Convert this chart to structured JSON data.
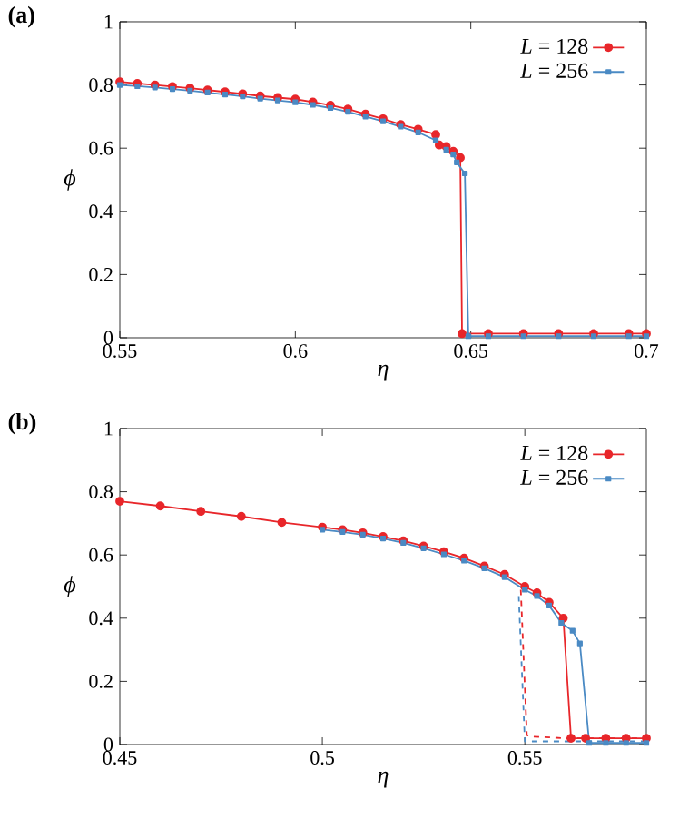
{
  "chart_data": [
    {
      "type": "line",
      "title": "(a)",
      "xlabel": "η",
      "ylabel": "ϕ",
      "xlim": [
        0.55,
        0.7
      ],
      "ylim": [
        0,
        1
      ],
      "xticks": [
        0.55,
        0.6,
        0.65,
        0.7
      ],
      "yticks": [
        0,
        0.2,
        0.4,
        0.6,
        0.8,
        1
      ],
      "legend": "top right",
      "series": [
        {
          "name": "*L* = 128",
          "color": "#e8262a",
          "marker": "circle",
          "line_style": "solid",
          "x": [
            0.55,
            0.555,
            0.56,
            0.565,
            0.57,
            0.575,
            0.58,
            0.585,
            0.59,
            0.595,
            0.6,
            0.605,
            0.61,
            0.615,
            0.62,
            0.625,
            0.63,
            0.635,
            0.64,
            0.641,
            0.643,
            0.645,
            0.647,
            0.6475,
            0.655,
            0.665,
            0.675,
            0.685,
            0.695,
            0.7
          ],
          "values": [
            0.81,
            0.805,
            0.8,
            0.795,
            0.79,
            0.784,
            0.778,
            0.772,
            0.765,
            0.76,
            0.755,
            0.746,
            0.736,
            0.724,
            0.708,
            0.693,
            0.675,
            0.66,
            0.643,
            0.61,
            0.605,
            0.59,
            0.57,
            0.013,
            0.013,
            0.013,
            0.013,
            0.013,
            0.013,
            0.013
          ]
        },
        {
          "name": "*L* = 256",
          "color": "#4a8ac4",
          "marker": "square",
          "line_style": "solid",
          "x": [
            0.55,
            0.555,
            0.56,
            0.565,
            0.57,
            0.575,
            0.58,
            0.585,
            0.59,
            0.595,
            0.6,
            0.605,
            0.61,
            0.615,
            0.62,
            0.625,
            0.63,
            0.635,
            0.64,
            0.643,
            0.645,
            0.646,
            0.6483,
            0.6493,
            0.655,
            0.665,
            0.675,
            0.685,
            0.695,
            0.7
          ],
          "values": [
            0.8,
            0.796,
            0.792,
            0.787,
            0.782,
            0.776,
            0.77,
            0.764,
            0.757,
            0.751,
            0.745,
            0.737,
            0.727,
            0.715,
            0.7,
            0.685,
            0.668,
            0.65,
            0.625,
            0.595,
            0.58,
            0.555,
            0.52,
            0.005,
            0.005,
            0.005,
            0.005,
            0.005,
            0.005,
            0.005
          ]
        }
      ]
    },
    {
      "type": "line",
      "title": "(b)",
      "xlabel": "η",
      "ylabel": "ϕ",
      "xlim": [
        0.45,
        0.58
      ],
      "ylim": [
        0,
        1
      ],
      "xticks": [
        0.45,
        0.5,
        0.55
      ],
      "yticks": [
        0,
        0.2,
        0.4,
        0.6,
        0.8,
        1
      ],
      "legend": "top right",
      "series": [
        {
          "name": "*L* = 128",
          "color": "#e8262a",
          "marker": "circle",
          "line_style": "solid",
          "x": [
            0.45,
            0.46,
            0.47,
            0.48,
            0.49,
            0.5,
            0.505,
            0.51,
            0.515,
            0.52,
            0.525,
            0.53,
            0.535,
            0.54,
            0.545,
            0.55,
            0.553,
            0.556,
            0.5595,
            0.5614,
            0.565,
            0.57,
            0.575,
            0.58
          ],
          "values": [
            0.77,
            0.755,
            0.738,
            0.722,
            0.703,
            0.688,
            0.68,
            0.67,
            0.658,
            0.645,
            0.628,
            0.61,
            0.59,
            0.565,
            0.538,
            0.5,
            0.48,
            0.45,
            0.4,
            0.02,
            0.02,
            0.02,
            0.02,
            0.02
          ]
        },
        {
          "name": "*L* = 256",
          "color": "#4a8ac4",
          "marker": "square",
          "line_style": "solid",
          "x": [
            0.5,
            0.505,
            0.51,
            0.515,
            0.52,
            0.525,
            0.53,
            0.535,
            0.54,
            0.545,
            0.55,
            0.553,
            0.556,
            0.559,
            0.5618,
            0.5636,
            0.5659,
            0.57,
            0.575,
            0.58
          ],
          "values": [
            0.68,
            0.673,
            0.664,
            0.652,
            0.638,
            0.621,
            0.602,
            0.582,
            0.558,
            0.53,
            0.49,
            0.47,
            0.44,
            0.385,
            0.36,
            0.32,
            0.005,
            0.005,
            0.005,
            0.005
          ]
        },
        {
          "color": "#e8262a",
          "marker": "none",
          "line_style": "dashed",
          "x": [
            0.549,
            0.5505,
            0.552,
            0.56,
            0.565,
            0.58
          ],
          "values": [
            0.49,
            0.03,
            0.025,
            0.02,
            0.02,
            0.02
          ]
        },
        {
          "color": "#4a8ac4",
          "marker": "none",
          "line_style": "dashed",
          "x": [
            0.5485,
            0.55,
            0.5515,
            0.56,
            0.565,
            0.58
          ],
          "values": [
            0.47,
            0.01,
            0.01,
            0.01,
            0.01,
            0.01
          ]
        }
      ]
    }
  ]
}
